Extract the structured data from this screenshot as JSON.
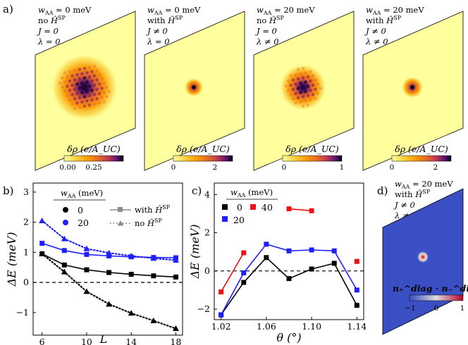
{
  "figure": {
    "top_label": "a)",
    "panels": [
      {
        "wAA": "w_AA = 0 meV",
        "ham": "no Ĥ^SP",
        "J": "J = 0",
        "lambda": "λ = 0",
        "cbar_label": "δρ (e/A_UC)",
        "ticks": [
          "0.00",
          "0.25"
        ],
        "spread": 1.0
      },
      {
        "wAA": "w_AA = 0 meV",
        "ham": "with Ĥ^SP",
        "J": "J ≠ 0",
        "lambda": "λ = 0",
        "cbar_label": "δρ (e/A_UC)",
        "ticks": [
          "0",
          "2"
        ],
        "spread": 0.28
      },
      {
        "wAA": "w_AA = 20 meV",
        "ham": "no Ĥ^SP",
        "J": "J = 0",
        "lambda": "λ ≠ 0",
        "cbar_label": "δρ (e/A_UC)",
        "ticks": [
          "0",
          "1"
        ],
        "spread": 0.7
      },
      {
        "wAA": "w_AA = 20 meV",
        "ham": "with Ĥ^SP",
        "J": "J ≠ 0",
        "lambda": "λ ≠ 0",
        "cbar_label": "δρ (e/A_UC)",
        "ticks": [
          "0",
          "2"
        ],
        "spread": 0.32
      }
    ],
    "panel_d": {
      "label": "d)",
      "wAA": "w_AA = 20 meV",
      "ham": "with Ĥ^SP",
      "J": "J ≠ 0",
      "lambda": "λ ≠ 0",
      "cbar_label": "n₊^diag · n₋^diag",
      "ticks": [
        "−1",
        "0",
        "1"
      ]
    },
    "colors": {
      "fill": "#ffff9e",
      "blue_map": "#3a4fc4",
      "black": "#000000",
      "blue": "#1f1fff",
      "red": "#ee1111"
    }
  },
  "chart_data": [
    {
      "type": "line",
      "panel": "b)",
      "xlabel": "L",
      "ylabel": "ΔE (meV)",
      "xlim": [
        5.2,
        18.6
      ],
      "ylim": [
        -1.75,
        3.3
      ],
      "xticks": [
        6,
        10,
        14,
        18
      ],
      "yticks": [
        -1,
        0,
        1,
        2,
        3
      ],
      "legend_title": "w_AA (meV)",
      "legend_values": [
        "0",
        "20"
      ],
      "legend_styles": [
        "with Ĥ^SP",
        "no Ĥ^SP"
      ],
      "series": [
        {
          "name": "0, with Ĥ^SP",
          "color": "black",
          "dash": "solid",
          "marker": "square",
          "x": [
            6,
            8,
            10,
            12,
            14,
            16,
            18
          ],
          "y": [
            0.95,
            0.58,
            0.42,
            0.33,
            0.27,
            0.22,
            0.18
          ]
        },
        {
          "name": "0, no Ĥ^SP",
          "color": "black",
          "dash": "dotted",
          "marker": "triangle",
          "x": [
            6,
            8,
            10,
            12,
            14,
            16,
            18
          ],
          "y": [
            0.95,
            0.35,
            -0.3,
            -0.72,
            -1.02,
            -1.27,
            -1.53
          ]
        },
        {
          "name": "20, with Ĥ^SP",
          "color": "blue",
          "dash": "solid",
          "marker": "square",
          "x": [
            6,
            8,
            10,
            12,
            14,
            16,
            18
          ],
          "y": [
            1.3,
            1.06,
            0.93,
            0.88,
            0.85,
            0.83,
            0.82
          ]
        },
        {
          "name": "20, no Ĥ^SP",
          "color": "blue",
          "dash": "dotted",
          "marker": "triangle",
          "x": [
            6,
            8,
            10,
            12,
            14,
            16,
            18
          ],
          "y": [
            2.05,
            1.45,
            1.12,
            0.98,
            0.88,
            0.8,
            0.74
          ]
        }
      ]
    },
    {
      "type": "line",
      "panel": "c)",
      "xlabel": "θ (°)",
      "ylabel": "ΔE (meV)",
      "xlim": [
        1.014,
        1.146
      ],
      "ylim": [
        -2.55,
        4.6
      ],
      "xticks": [
        1.02,
        1.06,
        1.1,
        1.14
      ],
      "xticklabels": [
        "1.02",
        "1.06",
        "1.10",
        "1.14"
      ],
      "yticks": [
        -2,
        0,
        2,
        4
      ],
      "legend_title": "w_AA (meV)",
      "legend_values": [
        "0",
        "40",
        "20"
      ],
      "series": [
        {
          "name": "0",
          "color": "black",
          "segments": [
            {
              "x": [
                1.02,
                1.04,
                1.06,
                1.08,
                1.1,
                1.12,
                1.14
              ],
              "y": [
                -2.3,
                -0.6,
                0.7,
                -0.4,
                0.1,
                0.4,
                -1.8
              ]
            }
          ]
        },
        {
          "name": "20",
          "color": "blue",
          "segments": [
            {
              "x": [
                1.02,
                1.04,
                1.06,
                1.08,
                1.1,
                1.12,
                1.14
              ],
              "y": [
                -2.3,
                -0.1,
                1.4,
                1.05,
                1.1,
                1.05,
                -1.0
              ]
            }
          ]
        },
        {
          "name": "40",
          "color": "red",
          "segments": [
            {
              "x": [
                1.02,
                1.04
              ],
              "y": [
                -1.1,
                0.95
              ]
            },
            {
              "x": [
                1.08,
                1.1
              ],
              "y": [
                3.25,
                3.15
              ]
            },
            {
              "x": [
                1.14
              ],
              "y": [
                0.5
              ]
            }
          ]
        }
      ]
    }
  ]
}
